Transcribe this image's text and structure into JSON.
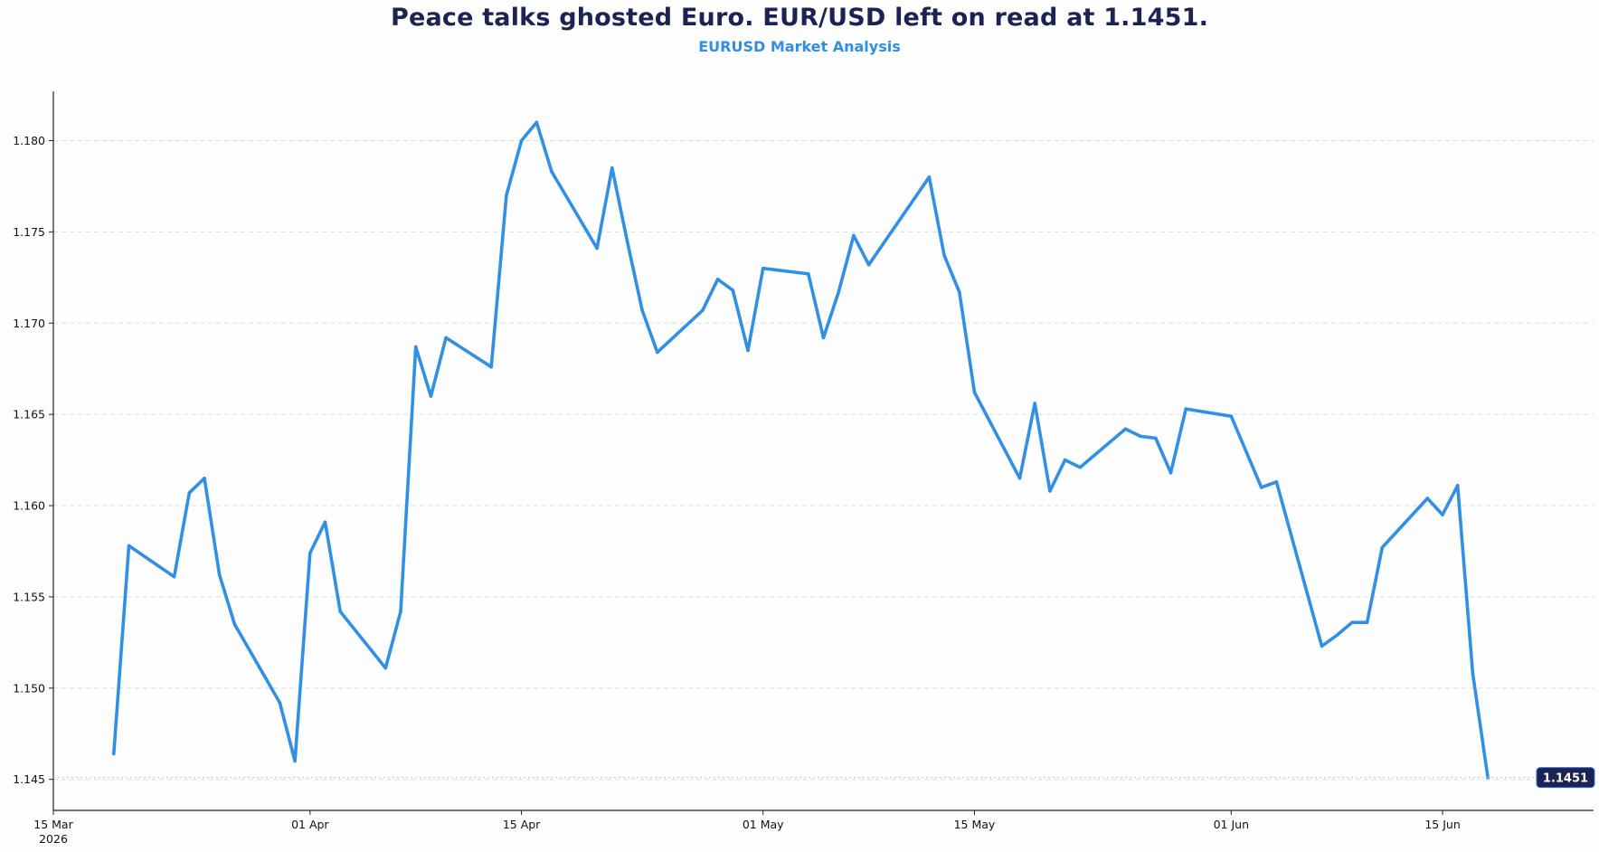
{
  "header": {
    "title": "Peace talks ghosted Euro. EUR/USD left on read at 1.1451.",
    "subtitle": "EURUSD Market Analysis"
  },
  "colors": {
    "title": "#1b2352",
    "subtitle": "#2f8fe3",
    "line": "#3190e4",
    "badge_bg": "#1b2352",
    "grid": "#d9dde3",
    "axis": "#222222"
  },
  "chart_data": {
    "type": "line",
    "title": "Peace talks ghosted Euro. EUR/USD left on read at 1.1451.",
    "subtitle": "EURUSD Market Analysis",
    "xlabel": "",
    "ylabel": "",
    "grid": "horizontal dashed",
    "ylim": [
      1.1433,
      1.1827
    ],
    "xlim": [
      "2026-03-15",
      "2026-06-25"
    ],
    "y_ticks": [
      "1.145",
      "1.150",
      "1.155",
      "1.160",
      "1.165",
      "1.170",
      "1.175",
      "1.180"
    ],
    "x_ticks": [
      {
        "date": "2026-03-15",
        "label": "15 Mar",
        "sublabel": "2026"
      },
      {
        "date": "2026-04-01",
        "label": "01 Apr",
        "sublabel": ""
      },
      {
        "date": "2026-04-15",
        "label": "15 Apr",
        "sublabel": ""
      },
      {
        "date": "2026-05-01",
        "label": "01 May",
        "sublabel": ""
      },
      {
        "date": "2026-05-15",
        "label": "15 May",
        "sublabel": ""
      },
      {
        "date": "2026-06-01",
        "label": "01 Jun",
        "sublabel": ""
      },
      {
        "date": "2026-06-15",
        "label": "15 Jun",
        "sublabel": ""
      }
    ],
    "last_value_label": "1.1451",
    "series": [
      {
        "x": [
          "2026-03-19",
          "2026-03-20",
          "2026-03-23",
          "2026-03-24",
          "2026-03-25",
          "2026-03-26",
          "2026-03-27",
          "2026-03-30",
          "2026-03-31",
          "2026-04-01",
          "2026-04-02",
          "2026-04-03",
          "2026-04-06",
          "2026-04-07",
          "2026-04-08",
          "2026-04-09",
          "2026-04-10",
          "2026-04-13",
          "2026-04-14",
          "2026-04-15",
          "2026-04-16",
          "2026-04-17",
          "2026-04-20",
          "2026-04-21",
          "2026-04-22",
          "2026-04-23",
          "2026-04-24",
          "2026-04-27",
          "2026-04-28",
          "2026-04-29",
          "2026-04-30",
          "2026-05-01",
          "2026-05-04",
          "2026-05-05",
          "2026-05-06",
          "2026-05-07",
          "2026-05-08",
          "2026-05-11",
          "2026-05-12",
          "2026-05-13",
          "2026-05-14",
          "2026-05-15",
          "2026-05-18",
          "2026-05-19",
          "2026-05-20",
          "2026-05-21",
          "2026-05-22",
          "2026-05-25",
          "2026-05-26",
          "2026-05-27",
          "2026-05-28",
          "2026-05-29",
          "2026-06-01",
          "2026-06-03",
          "2026-06-04",
          "2026-06-07",
          "2026-06-08",
          "2026-06-09",
          "2026-06-10",
          "2026-06-11",
          "2026-06-14",
          "2026-06-15",
          "2026-06-16",
          "2026-06-17",
          "2026-06-18"
        ],
        "y": [
          1.1464,
          1.1578,
          1.1561,
          1.1607,
          1.1615,
          1.1562,
          1.1535,
          1.1492,
          1.146,
          1.1574,
          1.1591,
          1.1542,
          1.1511,
          1.1542,
          1.1687,
          1.166,
          1.1692,
          1.1676,
          1.177,
          1.18,
          1.181,
          1.1783,
          1.1741,
          1.1785,
          1.1745,
          1.1707,
          1.1684,
          1.1707,
          1.1724,
          1.1718,
          1.1685,
          1.173,
          1.1727,
          1.1692,
          1.1717,
          1.1748,
          1.1732,
          1.1768,
          1.178,
          1.1737,
          1.1717,
          1.1662,
          1.1615,
          1.1656,
          1.1608,
          1.1625,
          1.1621,
          1.1642,
          1.1638,
          1.1637,
          1.1618,
          1.1653,
          1.1649,
          1.161,
          1.1613,
          1.1523,
          1.1529,
          1.1536,
          1.1536,
          1.1577,
          1.1604,
          1.1595,
          1.1611,
          1.1508,
          1.1451
        ]
      }
    ]
  }
}
